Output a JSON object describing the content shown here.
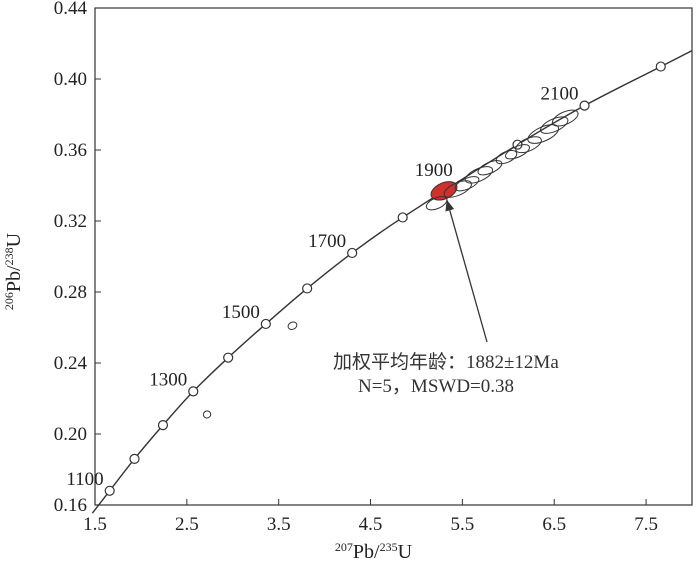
{
  "chart_data": {
    "type": "scatter",
    "subtype": "U-Pb concordia diagram",
    "xlabel": {
      "sup1": "207",
      "base1": "Pb/",
      "sup2": "235",
      "base2": "U"
    },
    "ylabel": {
      "sup1": "206",
      "base1": "Pb/",
      "sup2": "238",
      "base2": "U"
    },
    "xlim": [
      1.5,
      8.0
    ],
    "ylim": [
      0.16,
      0.44
    ],
    "xticks": [
      "1.5",
      "2.5",
      "3.5",
      "4.5",
      "5.5",
      "6.5",
      "7.5"
    ],
    "yticks": [
      "0.16",
      "0.20",
      "0.24",
      "0.28",
      "0.32",
      "0.36",
      "0.40",
      "0.44"
    ],
    "concordia_markers": [
      {
        "x": 1.66,
        "y": 0.168
      },
      {
        "x": 1.93,
        "y": 0.186
      },
      {
        "x": 2.24,
        "y": 0.205
      },
      {
        "x": 2.57,
        "y": 0.224
      },
      {
        "x": 2.95,
        "y": 0.243
      },
      {
        "x": 3.36,
        "y": 0.262
      },
      {
        "x": 3.81,
        "y": 0.282
      },
      {
        "x": 4.3,
        "y": 0.302
      },
      {
        "x": 4.85,
        "y": 0.322
      },
      {
        "x": 6.1,
        "y": 0.363
      },
      {
        "x": 6.83,
        "y": 0.385
      },
      {
        "x": 7.66,
        "y": 0.407
      }
    ],
    "age_labels": [
      {
        "text": "1100",
        "x": 1.66,
        "y": 0.168
      },
      {
        "text": "1300",
        "x": 2.57,
        "y": 0.224
      },
      {
        "text": "1500",
        "x": 3.36,
        "y": 0.262
      },
      {
        "text": "1700",
        "x": 4.3,
        "y": 0.302
      },
      {
        "text": "1900",
        "x": 5.46,
        "y": 0.342
      },
      {
        "text": "2100",
        "x": 6.83,
        "y": 0.385
      }
    ],
    "error_ellipses": [
      {
        "x": 5.3,
        "y": 0.337,
        "rx": 0.15,
        "ry": 0.0045,
        "highlight": true
      },
      {
        "x": 5.22,
        "y": 0.33,
        "rx": 0.12,
        "ry": 0.003
      },
      {
        "x": 5.45,
        "y": 0.338,
        "rx": 0.16,
        "ry": 0.0035
      },
      {
        "x": 5.55,
        "y": 0.341,
        "rx": 0.14,
        "ry": 0.003
      },
      {
        "x": 5.68,
        "y": 0.346,
        "rx": 0.16,
        "ry": 0.0035
      },
      {
        "x": 5.8,
        "y": 0.35,
        "rx": 0.14,
        "ry": 0.003
      },
      {
        "x": 5.98,
        "y": 0.356,
        "rx": 0.12,
        "ry": 0.003
      },
      {
        "x": 6.1,
        "y": 0.359,
        "rx": 0.14,
        "ry": 0.003
      },
      {
        "x": 6.22,
        "y": 0.363,
        "rx": 0.15,
        "ry": 0.0035
      },
      {
        "x": 6.38,
        "y": 0.369,
        "rx": 0.18,
        "ry": 0.004
      },
      {
        "x": 6.5,
        "y": 0.374,
        "rx": 0.16,
        "ry": 0.0035
      },
      {
        "x": 6.62,
        "y": 0.378,
        "rx": 0.15,
        "ry": 0.0035
      },
      {
        "x": 3.65,
        "y": 0.261,
        "rx": 0.05,
        "ry": 0.002
      },
      {
        "x": 2.72,
        "y": 0.211,
        "rx": 0.04,
        "ry": 0.002
      }
    ],
    "annotation": {
      "line1": "加权平均年龄：1882±12Ma",
      "line2": "N=5，MSWD=0.38",
      "arrow_target": {
        "x": 5.33,
        "y": 0.332
      }
    },
    "colors": {
      "highlight": "#d0312d",
      "line": "#333333"
    },
    "grid": false
  }
}
